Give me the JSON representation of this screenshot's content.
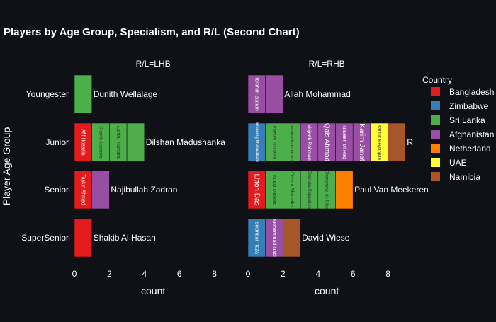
{
  "chart_data": {
    "type": "bar",
    "orientation": "horizontal",
    "barmode": "stack",
    "title": "Players by Age Group, Specialism, and R/L (Second Chart)",
    "ylabel": "Player Age Group",
    "xlabel": "count",
    "categories": [
      "Youngester",
      "Junior",
      "Senior",
      "SuperSenior"
    ],
    "xlim": [
      0,
      9
    ],
    "xticks": [
      0,
      2,
      4,
      6,
      8
    ],
    "legend": {
      "title": "Country",
      "placement": "right",
      "entries": [
        {
          "name": "Bangladesh",
          "color": "#e41a1c"
        },
        {
          "name": "Zimbabwe",
          "color": "#377eb8"
        },
        {
          "name": "Sri Lanka",
          "color": "#4daf4a"
        },
        {
          "name": "Afghanistan",
          "color": "#984ea3"
        },
        {
          "name": "Netherland",
          "color": "#ff7f00"
        },
        {
          "name": "UAE",
          "color": "#ffff33"
        },
        {
          "name": "Namibia",
          "color": "#a65628"
        }
      ]
    },
    "facets": [
      {
        "title": "R/L=LHB",
        "rows": [
          {
            "category": "Youngester",
            "bars": [
              {
                "label": "Dunith Wellalage",
                "country": "Sri Lanka",
                "value": 1
              }
            ]
          },
          {
            "category": "Junior",
            "bars": [
              {
                "label": "Afif Hossain",
                "country": "Bangladesh",
                "value": 1
              },
              {
                "label": "Charith Asalanka",
                "country": "Sri Lanka",
                "value": 1
              },
              {
                "label": "Lahiru Kumara",
                "country": "Sri Lanka",
                "value": 1
              },
              {
                "label": "Dilshan Madushanka",
                "country": "Sri Lanka",
                "value": 1
              }
            ]
          },
          {
            "category": "Senior",
            "bars": [
              {
                "label": "Taskin Ahmed",
                "country": "Bangladesh",
                "value": 1
              },
              {
                "label": "Najibullah Zadran",
                "country": "Afghanistan",
                "value": 1
              }
            ]
          },
          {
            "category": "SuperSenior",
            "bars": [
              {
                "label": "Shakib Al Hasan",
                "country": "Bangladesh",
                "value": 1
              }
            ]
          }
        ]
      },
      {
        "title": "R/L=RHB",
        "rows": [
          {
            "category": "Youngester",
            "bars": [
              {
                "label": "Ibrahim Zadran",
                "country": "Afghanistan",
                "value": 1
              },
              {
                "label": "Allah Mohammad",
                "country": "Afghanistan",
                "value": 1
              }
            ]
          },
          {
            "category": "Junior",
            "bars": [
              {
                "label": "Blessing Muzarabani",
                "country": "Zimbabwe",
                "value": 1
              },
              {
                "label": "Pathum Nissanka",
                "country": "Sri Lanka",
                "value": 1
              },
              {
                "label": "Chamika Karunaratne",
                "country": "Sri Lanka",
                "value": 1
              },
              {
                "label": "Mujeeb Rahman",
                "country": "Afghanistan",
                "value": 1
              },
              {
                "label": "Qais Ahmad",
                "country": "Afghanistan",
                "value": 1
              },
              {
                "label": "Naveen Ul Haq",
                "country": "Afghanistan",
                "value": 1
              },
              {
                "label": "Karim Janat",
                "country": "Afghanistan",
                "value": 1
              },
              {
                "label": "Karthik Meiyappan",
                "country": "UAE",
                "value": 1
              },
              {
                "label": "Ruben Trumpelmann",
                "country": "Namibia",
                "value": 1
              }
            ]
          },
          {
            "category": "Senior",
            "bars": [
              {
                "label": "Litton Das",
                "country": "Bangladesh",
                "value": 1
              },
              {
                "label": "Kusal Mendis",
                "country": "Sri Lanka",
                "value": 1
              },
              {
                "label": "Dasun Shanaka",
                "country": "Sri Lanka",
                "value": 1
              },
              {
                "label": "Bhanuka Rajapaksa",
                "country": "Sri Lanka",
                "value": 1
              },
              {
                "label": "Dhananjaya de Silva",
                "country": "Sri Lanka",
                "value": 1
              },
              {
                "label": "Paul Van Meekeren",
                "country": "Netherland",
                "value": 1
              }
            ]
          },
          {
            "category": "SuperSenior",
            "bars": [
              {
                "label": "Sikandar Raza",
                "country": "Zimbabwe",
                "value": 1
              },
              {
                "label": "Mohammad Nabi",
                "country": "Afghanistan",
                "value": 1
              },
              {
                "label": "David Wiese",
                "country": "Namibia",
                "value": 1
              }
            ]
          }
        ]
      }
    ]
  }
}
